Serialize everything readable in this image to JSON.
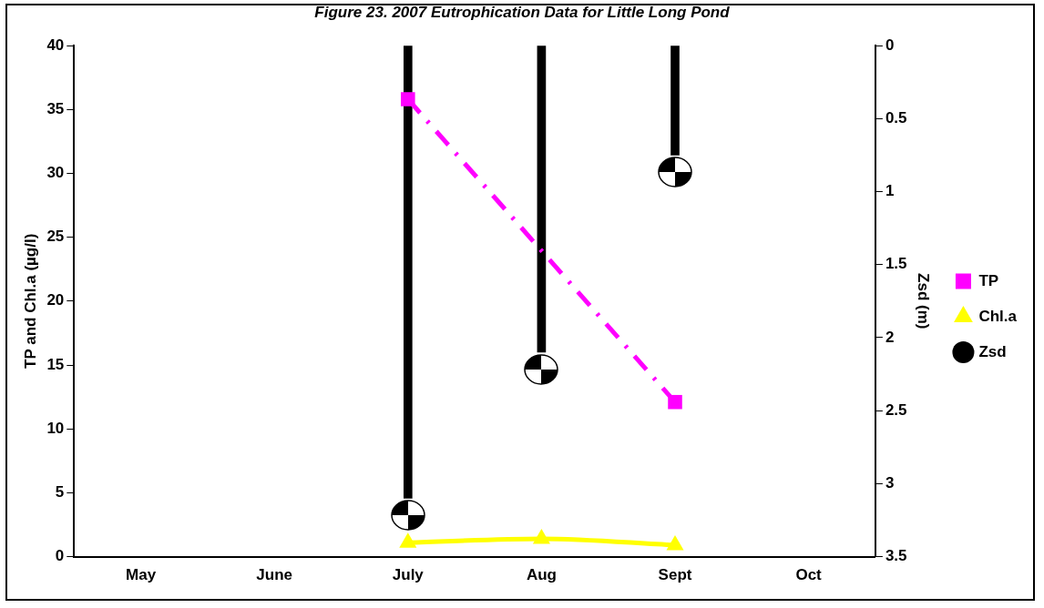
{
  "chart_data": {
    "type": "line",
    "title": "Figure 23. 2007 Eutrophication Data for Little Long Pond",
    "ylabel": "TP and Chl.a (µg/l)",
    "y2label": "Zsd (m)",
    "categories": [
      "May",
      "June",
      "July",
      "Aug",
      "Sept",
      "Oct"
    ],
    "ylim": [
      0,
      40
    ],
    "yticks": [
      0,
      5,
      10,
      15,
      20,
      25,
      30,
      35,
      40
    ],
    "y2lim": [
      3.5,
      0
    ],
    "y2ticks": [
      0,
      0.5,
      1,
      1.5,
      2,
      2.5,
      3,
      3.5
    ],
    "series": [
      {
        "name": "TP",
        "color": "#ff00ff",
        "marker": "square",
        "line_style": "dashed",
        "values": [
          null,
          null,
          35.8,
          null,
          12.1,
          null
        ]
      },
      {
        "name": "Chl.a",
        "color": "#ffff00",
        "marker": "triangle",
        "line_style": "solid",
        "values": [
          null,
          null,
          1.1,
          1.4,
          0.9,
          null
        ]
      },
      {
        "name": "Zsd",
        "type": "bar",
        "axis": "y2",
        "color": "#000000",
        "marker": "circle",
        "values": [
          null,
          null,
          3.1,
          2.1,
          0.75,
          null
        ]
      }
    ],
    "grid": false,
    "legend": "right"
  }
}
